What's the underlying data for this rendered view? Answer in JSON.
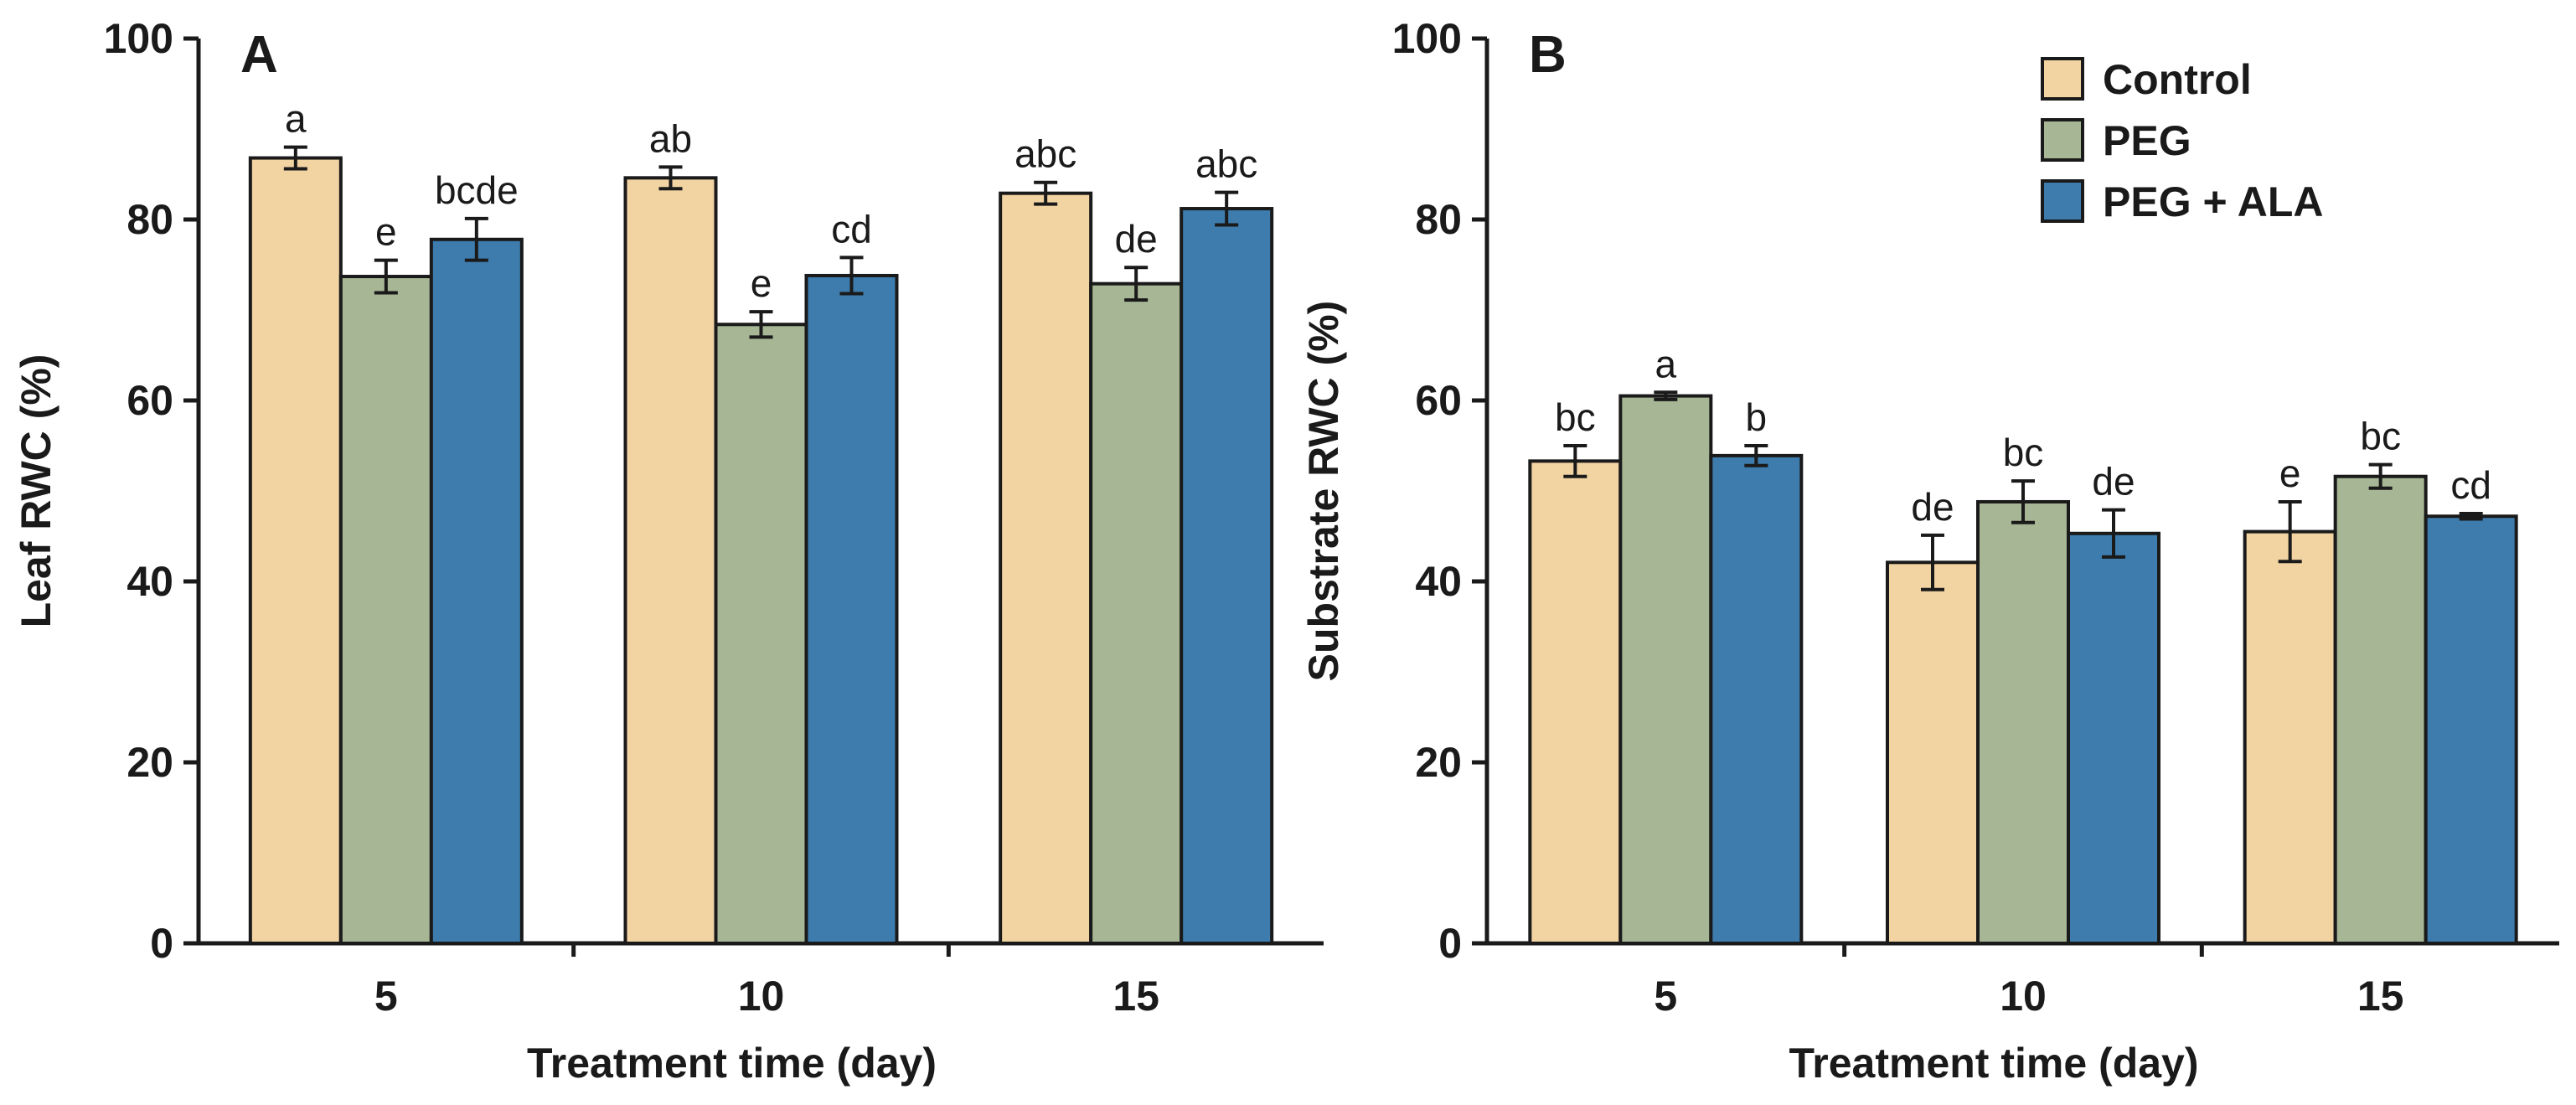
{
  "chart_data": [
    {
      "panel": "A",
      "type": "bar",
      "categories": [
        "5",
        "10",
        "15"
      ],
      "xlabel": "Treatment time (day)",
      "ylabel": "Leaf RWC (%)",
      "ylim": [
        0,
        100
      ],
      "yticks": [
        0,
        20,
        40,
        60,
        80,
        100
      ],
      "series": [
        {
          "name": "Control",
          "color": "#f2d3a2",
          "values": [
            86.8,
            84.6,
            82.9
          ],
          "errors": [
            1.2,
            1.2,
            1.2
          ],
          "labels": [
            "a",
            "ab",
            "abc"
          ]
        },
        {
          "name": "PEG",
          "color": "#a7b795",
          "values": [
            73.7,
            68.4,
            72.9
          ],
          "errors": [
            1.8,
            1.4,
            1.8
          ],
          "labels": [
            "e",
            "e",
            "de"
          ]
        },
        {
          "name": "PEG + ALA",
          "color": "#3d7cad",
          "values": [
            77.8,
            73.8,
            81.2
          ],
          "errors": [
            2.3,
            2.0,
            1.8
          ],
          "labels": [
            "bcde",
            "cd",
            "abc"
          ]
        }
      ]
    },
    {
      "panel": "B",
      "type": "bar",
      "categories": [
        "5",
        "10",
        "15"
      ],
      "xlabel": "Treatment time (day)",
      "ylabel": "Substrate RWC (%)",
      "ylim": [
        0,
        100
      ],
      "yticks": [
        0,
        20,
        40,
        60,
        80,
        100
      ],
      "legend": "top-right",
      "series": [
        {
          "name": "Control",
          "color": "#f2d3a2",
          "values": [
            53.3,
            42.1,
            45.5
          ],
          "errors": [
            1.7,
            3.0,
            3.3
          ],
          "labels": [
            "bc",
            "de",
            "e"
          ]
        },
        {
          "name": "PEG",
          "color": "#a7b795",
          "values": [
            60.5,
            48.8,
            51.6
          ],
          "errors": [
            0.4,
            2.3,
            1.3
          ],
          "labels": [
            "a",
            "bc",
            "bc"
          ]
        },
        {
          "name": "PEG + ALA",
          "color": "#3d7cad",
          "values": [
            53.9,
            45.3,
            47.2
          ],
          "errors": [
            1.1,
            2.6,
            0.3
          ],
          "labels": [
            "b",
            "de",
            "cd"
          ]
        }
      ]
    }
  ]
}
